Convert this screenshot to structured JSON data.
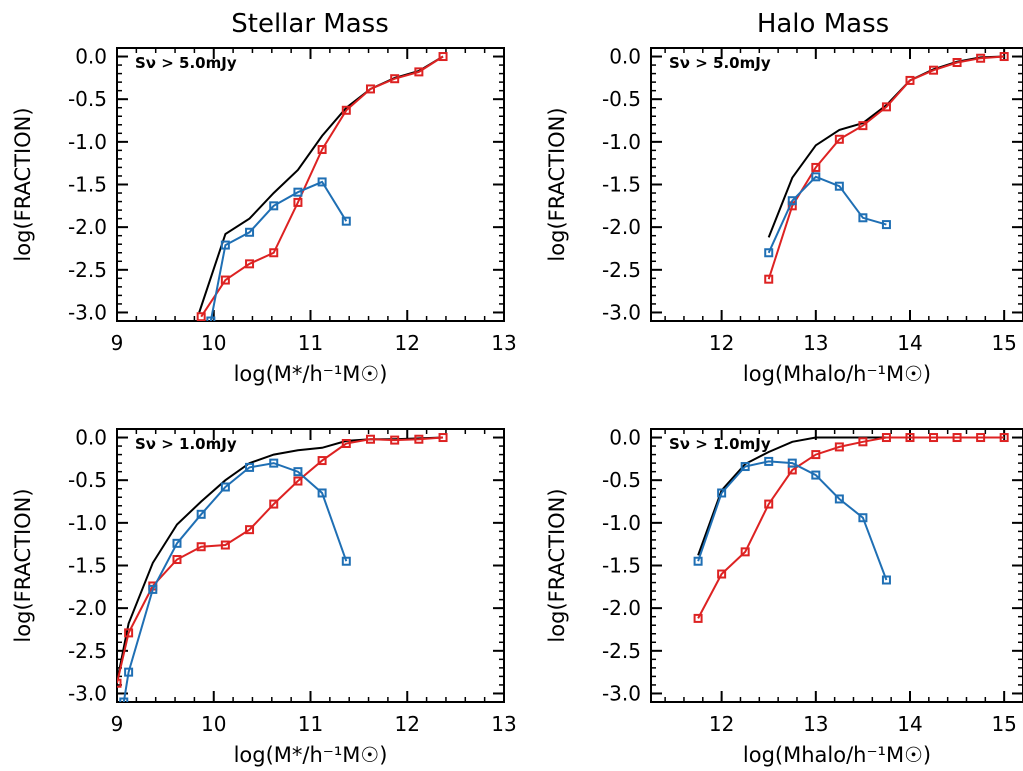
{
  "column_titles": [
    "Stellar Mass",
    "Halo Mass"
  ],
  "chart_data": [
    {
      "type": "line",
      "annotation": "Sν > 5.0mJy",
      "xlabel": "log(M*/h⁻¹M☉)",
      "ylabel": "log(FRACTION)",
      "xlim": [
        9,
        13
      ],
      "ylim": [
        -3.1,
        0.1
      ],
      "xticks": [
        9,
        10,
        11,
        12,
        13
      ],
      "yticks": [
        0.0,
        -0.5,
        -1.0,
        -1.5,
        -2.0,
        -2.5,
        -3.0
      ],
      "series": [
        {
          "color": "#000000",
          "markers": false,
          "x": [
            9.85,
            10.12,
            10.37,
            10.62,
            10.87,
            11.12,
            11.37,
            11.62,
            11.87,
            12.12,
            12.37
          ],
          "y": [
            -3.0,
            -2.08,
            -1.9,
            -1.6,
            -1.33,
            -0.93,
            -0.6,
            -0.38,
            -0.25,
            -0.17,
            0.0
          ]
        },
        {
          "color": "#dd2222",
          "markers": true,
          "x": [
            9.87,
            10.12,
            10.37,
            10.62,
            10.87,
            11.12,
            11.37,
            11.62,
            11.87,
            12.12,
            12.37
          ],
          "y": [
            -3.05,
            -2.62,
            -2.43,
            -2.3,
            -1.71,
            -1.09,
            -0.63,
            -0.38,
            -0.26,
            -0.18,
            0.0
          ]
        },
        {
          "color": "#1f6fb4",
          "markers": true,
          "x": [
            9.97,
            10.12,
            10.37,
            10.62,
            10.87,
            11.12,
            11.37
          ],
          "y": [
            -3.1,
            -2.21,
            -2.06,
            -1.75,
            -1.59,
            -1.47,
            -1.93
          ]
        }
      ]
    },
    {
      "type": "line",
      "annotation": "Sν > 5.0mJy",
      "xlabel": "log(Mhalo/h⁻¹M☉)",
      "ylabel": "log(FRACTION)",
      "xlim": [
        11.25,
        15.2
      ],
      "ylim": [
        -3.1,
        0.1
      ],
      "xticks": [
        12,
        13,
        14,
        15
      ],
      "yticks": [
        0.0,
        -0.5,
        -1.0,
        -1.5,
        -2.0,
        -2.5,
        -3.0
      ],
      "series": [
        {
          "color": "#000000",
          "markers": false,
          "x": [
            12.5,
            12.75,
            13.0,
            13.25,
            13.5,
            13.75,
            14.0,
            14.25,
            14.5,
            14.75,
            15.0
          ],
          "y": [
            -2.12,
            -1.42,
            -1.04,
            -0.86,
            -0.78,
            -0.57,
            -0.28,
            -0.15,
            -0.06,
            -0.01,
            0.0
          ]
        },
        {
          "color": "#dd2222",
          "markers": true,
          "x": [
            12.5,
            12.75,
            13.0,
            13.25,
            13.5,
            13.75,
            14.0,
            14.25,
            14.5,
            14.75,
            15.0
          ],
          "y": [
            -2.61,
            -1.75,
            -1.3,
            -0.97,
            -0.81,
            -0.59,
            -0.28,
            -0.16,
            -0.07,
            -0.02,
            0.0
          ]
        },
        {
          "color": "#1f6fb4",
          "markers": true,
          "x": [
            12.5,
            12.75,
            13.0,
            13.25,
            13.5,
            13.75
          ],
          "y": [
            -2.3,
            -1.69,
            -1.41,
            -1.52,
            -1.89,
            -1.97
          ]
        }
      ]
    },
    {
      "type": "line",
      "annotation": "Sν > 1.0mJy",
      "xlabel": "log(M*/h⁻¹M☉)",
      "ylabel": "log(FRACTION)",
      "xlim": [
        9,
        13
      ],
      "ylim": [
        -3.1,
        0.1
      ],
      "xticks": [
        9,
        10,
        11,
        12,
        13
      ],
      "yticks": [
        0.0,
        -0.5,
        -1.0,
        -1.5,
        -2.0,
        -2.5,
        -3.0
      ],
      "series": [
        {
          "color": "#000000",
          "markers": false,
          "x": [
            9.0,
            9.12,
            9.37,
            9.62,
            9.87,
            10.12,
            10.37,
            10.62,
            10.87,
            11.12,
            11.37,
            11.62,
            11.87,
            12.12,
            12.37
          ],
          "y": [
            -2.86,
            -2.18,
            -1.47,
            -1.02,
            -0.75,
            -0.5,
            -0.3,
            -0.2,
            -0.15,
            -0.12,
            -0.04,
            -0.02,
            -0.02,
            -0.01,
            0.0
          ]
        },
        {
          "color": "#dd2222",
          "markers": true,
          "x": [
            9.0,
            9.12,
            9.37,
            9.62,
            9.87,
            10.12,
            10.37,
            10.62,
            10.87,
            11.12,
            11.37,
            11.62,
            11.87,
            12.12,
            12.37
          ],
          "y": [
            -2.88,
            -2.29,
            -1.74,
            -1.43,
            -1.28,
            -1.26,
            -1.08,
            -0.78,
            -0.51,
            -0.27,
            -0.07,
            -0.02,
            -0.03,
            -0.02,
            0.0
          ]
        },
        {
          "color": "#1f6fb4",
          "markers": true,
          "x": [
            9.07,
            9.12,
            9.37,
            9.62,
            9.87,
            10.12,
            10.37,
            10.62,
            10.87,
            11.12,
            11.37
          ],
          "y": [
            -3.1,
            -2.75,
            -1.78,
            -1.24,
            -0.9,
            -0.58,
            -0.35,
            -0.3,
            -0.4,
            -0.65,
            -1.45
          ]
        }
      ]
    },
    {
      "type": "line",
      "annotation": "Sν > 1.0mJy",
      "xlabel": "log(Mhalo/h⁻¹M☉)",
      "ylabel": "log(FRACTION)",
      "xlim": [
        11.25,
        15.2
      ],
      "ylim": [
        -3.1,
        0.1
      ],
      "xticks": [
        12,
        13,
        14,
        15
      ],
      "yticks": [
        0.0,
        -0.5,
        -1.0,
        -1.5,
        -2.0,
        -2.5,
        -3.0
      ],
      "series": [
        {
          "color": "#000000",
          "markers": false,
          "x": [
            11.75,
            12.0,
            12.25,
            12.5,
            12.75,
            13.0,
            13.25,
            13.5,
            13.75,
            14.0,
            14.25,
            14.5,
            14.75,
            15.0
          ],
          "y": [
            -1.38,
            -0.62,
            -0.31,
            -0.17,
            -0.05,
            0.0,
            0.0,
            0.0,
            0.0,
            0.0,
            0.0,
            0.0,
            0.0,
            0.0
          ]
        },
        {
          "color": "#dd2222",
          "markers": true,
          "x": [
            11.75,
            12.0,
            12.25,
            12.5,
            12.75,
            13.0,
            13.25,
            13.5,
            13.75,
            14.0,
            14.25,
            14.5,
            14.75,
            15.0
          ],
          "y": [
            -2.12,
            -1.6,
            -1.34,
            -0.78,
            -0.38,
            -0.2,
            -0.11,
            -0.05,
            0.0,
            0.0,
            0.0,
            0.0,
            0.0,
            0.0
          ]
        },
        {
          "color": "#1f6fb4",
          "markers": true,
          "x": [
            11.75,
            12.0,
            12.25,
            12.5,
            12.75,
            13.0,
            13.25,
            13.5,
            13.75
          ],
          "y": [
            -1.45,
            -0.65,
            -0.34,
            -0.28,
            -0.3,
            -0.44,
            -0.72,
            -0.94,
            -1.67
          ]
        }
      ]
    }
  ]
}
